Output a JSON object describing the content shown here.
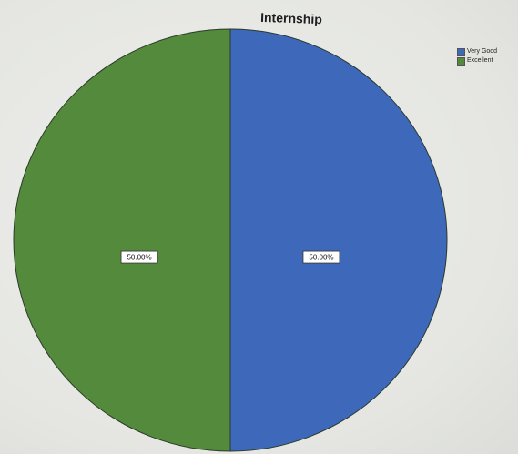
{
  "chart_data": {
    "type": "pie",
    "title": "Internship",
    "categories": [
      "Very Good",
      "Excellent"
    ],
    "values": [
      50.0,
      50.0
    ],
    "labels": [
      "50.00%",
      "50.00%"
    ],
    "colors": [
      "#3e68b9",
      "#548a3b"
    ],
    "legend_position": "top-right"
  }
}
